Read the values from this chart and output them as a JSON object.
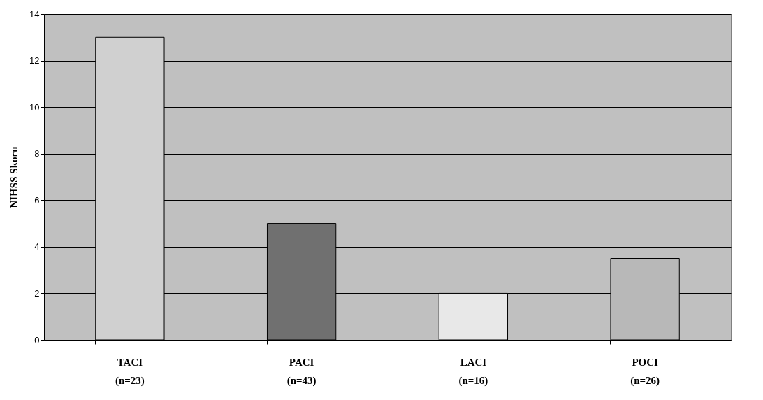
{
  "chart_data": {
    "type": "bar",
    "ylabel": "NIHSS Skoru",
    "categories": [
      "TACI\n(n=23)",
      "PACI\n(n=43)",
      "LACI\n(n=16)",
      "POCI\n(n=26)"
    ],
    "values": [
      13,
      5,
      2,
      3.5
    ],
    "colors": [
      "#d0d0d0",
      "#707070",
      "#e8e8e8",
      "#b8b8b8"
    ],
    "ylim": [
      0,
      14
    ],
    "yticks": [
      0,
      2,
      4,
      6,
      8,
      10,
      12,
      14
    ],
    "grid": "y"
  }
}
